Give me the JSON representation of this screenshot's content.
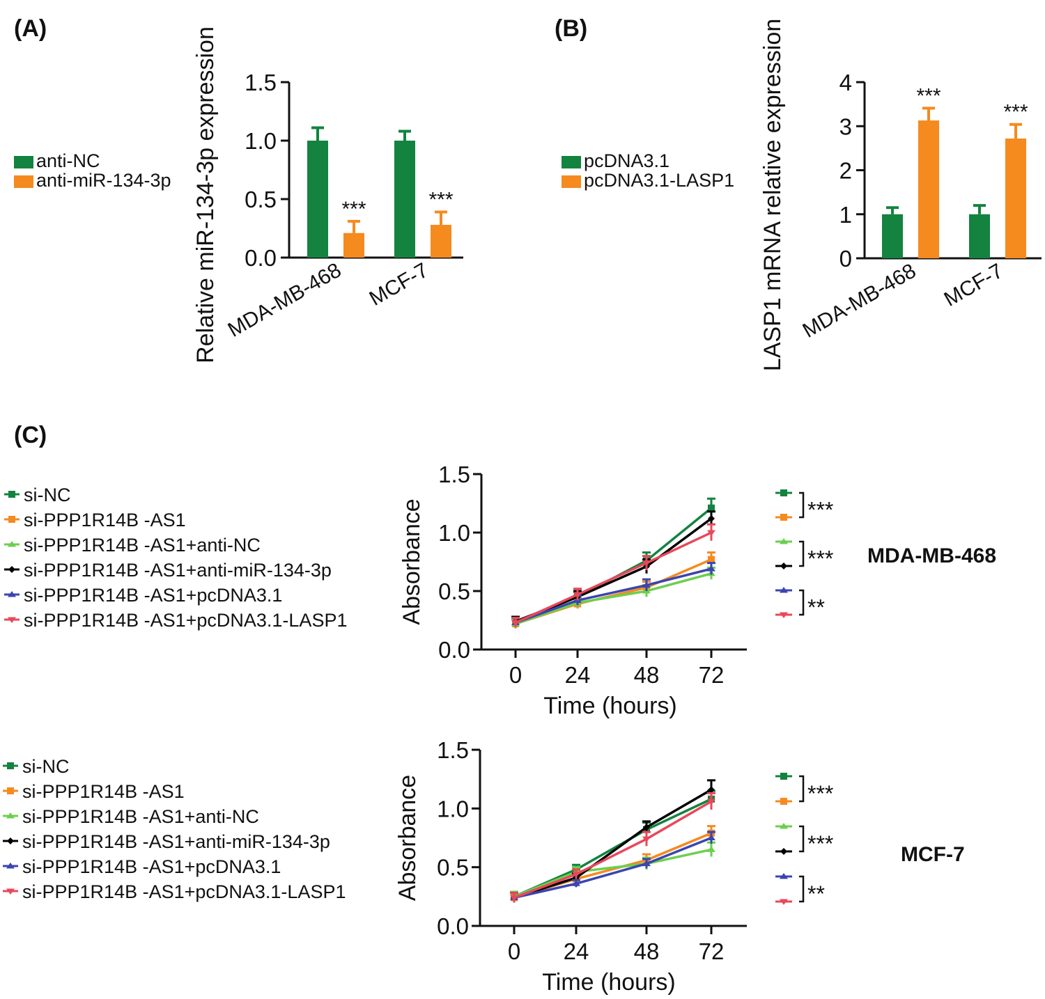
{
  "colors": {
    "green": "#13833f",
    "orange": "#f58a1f",
    "light_green": "#6ccf4f",
    "black": "#000000",
    "blue": "#3a45b0",
    "red": "#e8485a"
  },
  "chart_data": [
    {
      "panel": "A",
      "panel_label": "(A)",
      "type": "bar",
      "ylabel": "Relative miR-134-3p expression",
      "ylim": [
        0,
        1.5
      ],
      "yticks": [
        "0.0",
        "0.5",
        "1.0",
        "1.5"
      ],
      "categories": [
        "MDA-MB-468",
        "MCF-7"
      ],
      "series": [
        {
          "name": "anti-NC",
          "color_key": "green",
          "values": [
            1.0,
            1.0
          ],
          "errors": [
            0.11,
            0.08
          ]
        },
        {
          "name": "anti-miR-134-3p",
          "color_key": "orange",
          "values": [
            0.21,
            0.28
          ],
          "errors": [
            0.1,
            0.11
          ]
        }
      ],
      "significance": [
        "***",
        "***"
      ]
    },
    {
      "panel": "B",
      "panel_label": "(B)",
      "type": "bar",
      "ylabel": "LASP1 mRNA relative expression",
      "ylim": [
        0,
        4
      ],
      "yticks": [
        "0",
        "1",
        "2",
        "3",
        "4"
      ],
      "categories": [
        "MDA-MB-468",
        "MCF-7"
      ],
      "series": [
        {
          "name": "pcDNA3.1",
          "color_key": "green",
          "values": [
            1.0,
            1.0
          ],
          "errors": [
            0.15,
            0.2
          ]
        },
        {
          "name": "pcDNA3.1-LASP1",
          "color_key": "orange",
          "values": [
            3.13,
            2.72
          ],
          "errors": [
            0.28,
            0.32
          ]
        }
      ],
      "significance": [
        "***",
        "***"
      ]
    },
    {
      "panel": "C",
      "panel_label": "(C)",
      "type": "line",
      "cell_line": "MDA-MB-468",
      "xlabel": "Time (hours)",
      "ylabel": "Absorbance",
      "x": [
        0,
        24,
        48,
        72
      ],
      "xticks": [
        "0",
        "24",
        "48",
        "72"
      ],
      "ylim": [
        0,
        1.5
      ],
      "yticks": [
        "0.0",
        "0.5",
        "1.0",
        "1.5"
      ],
      "series": [
        {
          "name": "si-NC",
          "color_key": "green",
          "values": [
            0.23,
            0.45,
            0.76,
            1.21
          ],
          "errors": [
            0.04,
            0.04,
            0.07,
            0.08
          ]
        },
        {
          "name": "si-PPP1R14B -AS1",
          "color_key": "orange",
          "values": [
            0.22,
            0.39,
            0.53,
            0.77
          ],
          "errors": [
            0.04,
            0.04,
            0.05,
            0.06
          ]
        },
        {
          "name": "si-PPP1R14B -AS1+anti-NC",
          "color_key": "light_green",
          "values": [
            0.22,
            0.4,
            0.5,
            0.65
          ],
          "errors": [
            0.04,
            0.04,
            0.05,
            0.05
          ]
        },
        {
          "name": "si-PPP1R14B -AS1+anti-miR-134-3p",
          "color_key": "black",
          "values": [
            0.24,
            0.45,
            0.71,
            1.12
          ],
          "errors": [
            0.04,
            0.05,
            0.06,
            0.06
          ]
        },
        {
          "name": "si-PPP1R14B -AS1+pcDNA3.1",
          "color_key": "blue",
          "values": [
            0.23,
            0.42,
            0.55,
            0.69
          ],
          "errors": [
            0.04,
            0.04,
            0.05,
            0.05
          ]
        },
        {
          "name": "si-PPP1R14B -AS1+pcDNA3.1-LASP1",
          "color_key": "red",
          "values": [
            0.23,
            0.47,
            0.74,
            1.0
          ],
          "errors": [
            0.04,
            0.05,
            0.06,
            0.07
          ]
        }
      ],
      "significance": [
        "***",
        "***",
        "**"
      ]
    },
    {
      "panel": "C",
      "type": "line",
      "cell_line": "MCF-7",
      "xlabel": "Time (hours)",
      "ylabel": "Absorbance",
      "x": [
        0,
        24,
        48,
        72
      ],
      "xticks": [
        "0",
        "24",
        "48",
        "72"
      ],
      "ylim": [
        0,
        1.5
      ],
      "yticks": [
        "0.0",
        "0.5",
        "1.0",
        "1.5"
      ],
      "series": [
        {
          "name": "si-NC",
          "color_key": "green",
          "values": [
            0.25,
            0.48,
            0.82,
            1.08
          ],
          "errors": [
            0.04,
            0.04,
            0.06,
            0.07
          ]
        },
        {
          "name": "si-PPP1R14B -AS1",
          "color_key": "orange",
          "values": [
            0.24,
            0.4,
            0.56,
            0.79
          ],
          "errors": [
            0.04,
            0.04,
            0.05,
            0.06
          ]
        },
        {
          "name": "si-PPP1R14B -AS1+anti-NC",
          "color_key": "light_green",
          "values": [
            0.25,
            0.46,
            0.53,
            0.65
          ],
          "errors": [
            0.04,
            0.04,
            0.05,
            0.06
          ]
        },
        {
          "name": "si-PPP1R14B -AS1+anti-miR-134-3p",
          "color_key": "black",
          "values": [
            0.24,
            0.41,
            0.84,
            1.16
          ],
          "errors": [
            0.04,
            0.04,
            0.05,
            0.08
          ]
        },
        {
          "name": "si-PPP1R14B -AS1+pcDNA3.1",
          "color_key": "blue",
          "values": [
            0.24,
            0.36,
            0.53,
            0.75
          ],
          "errors": [
            0.04,
            0.03,
            0.04,
            0.05
          ]
        },
        {
          "name": "si-PPP1R14B -AS1+pcDNA3.1-LASP1",
          "color_key": "red",
          "values": [
            0.24,
            0.44,
            0.74,
            1.06
          ],
          "errors": [
            0.04,
            0.04,
            0.06,
            0.07
          ]
        }
      ],
      "significance": [
        "***",
        "***",
        "**"
      ]
    }
  ]
}
